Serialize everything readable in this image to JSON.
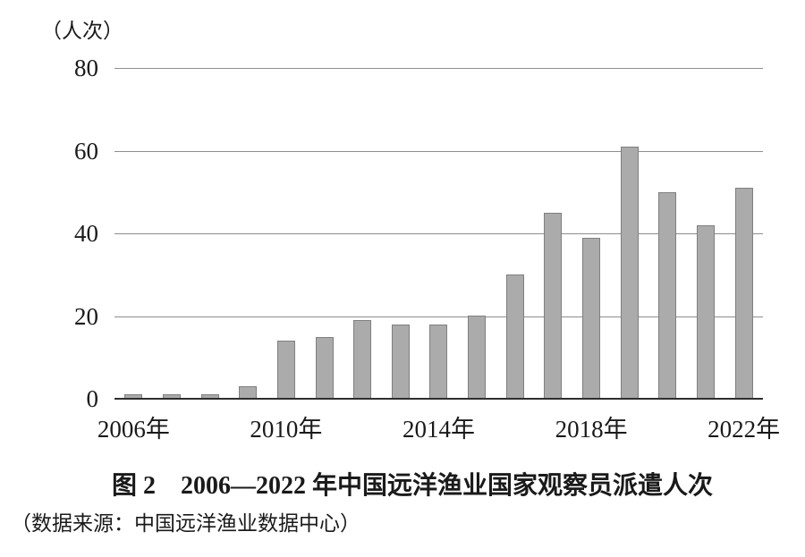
{
  "figure": {
    "unit_label": "（人次）",
    "title": "图 2　2006—2022 年中国远洋渔业国家观察员派遣人次",
    "source_note": "（数据来源：中国远洋渔业数据中心）"
  },
  "chart_data": {
    "type": "bar",
    "title": "图 2　2006—2022 年中国远洋渔业国家观察员派遣人次",
    "ylabel": "（人次）",
    "categories": [
      "2006",
      "2007",
      "2008",
      "2009",
      "2010",
      "2011",
      "2012",
      "2013",
      "2014",
      "2015",
      "2016",
      "2017",
      "2018",
      "2019",
      "2020",
      "2021",
      "2022"
    ],
    "values": [
      1,
      1,
      1,
      3,
      14,
      15,
      19,
      18,
      18,
      20,
      30,
      45,
      39,
      61,
      50,
      42,
      51
    ],
    "ylim": [
      0,
      80
    ],
    "yticks": [
      0,
      20,
      40,
      60,
      80
    ],
    "ytick_labels": [
      "0",
      "20",
      "40",
      "60",
      "80"
    ],
    "xtick_positions": [
      0,
      4,
      8,
      12,
      16
    ],
    "xtick_labels": [
      "2006年",
      "2010年",
      "2014年",
      "2018年",
      "2022年"
    ],
    "grid": "horizontal",
    "legend": "none",
    "bar_fill": "#ABABAB",
    "bar_border": "#7F7F7F",
    "gridline_color": "#8e8e8e",
    "axis_color": "#2e2e2e",
    "source": "（数据来源：中国远洋渔业数据中心）"
  }
}
